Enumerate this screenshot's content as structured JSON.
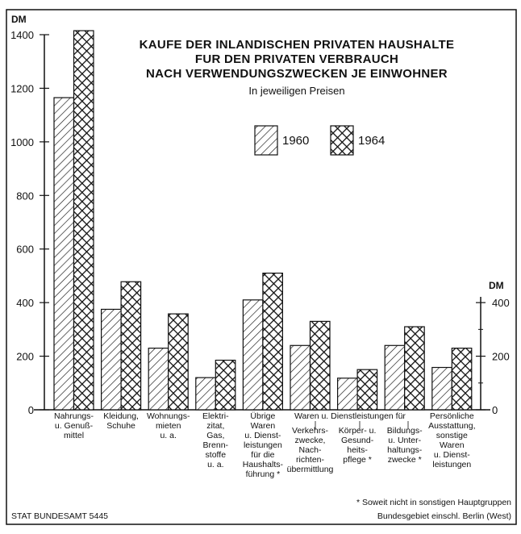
{
  "chart_data": {
    "type": "bar",
    "title": "KAUFE DER INLANDISCHEN PRIVATEN HAUSHALTE FUR DEN PRIVATEN VERBRAUCH NACH VERWENDUNGSZWECKEN JE EINWOHNER",
    "title_lines": [
      "KAUFE DER INLANDISCHEN PRIVATEN HAUSHALTE",
      "FUR DEN PRIVATEN VERBRAUCH",
      "NACH VERWENDUNGSZWECKEN JE EINWOHNER"
    ],
    "subtitle": "In jeweiligen Preisen",
    "ylabel_left": "DM",
    "ylabel_right": "DM",
    "ylim": [
      0,
      1400
    ],
    "left_ticks": [
      0,
      200,
      400,
      600,
      800,
      1000,
      1200,
      1400
    ],
    "right_ticks": [
      0,
      200,
      400
    ],
    "grid": false,
    "legend_position": "top-right",
    "categories": [
      [
        "Nahrungs-",
        "u. Genuß-",
        "mittel"
      ],
      [
        "Kleidung,",
        "Schuhe"
      ],
      [
        "Wohnungs-",
        "mieten",
        "u. a."
      ],
      [
        "Elektri-",
        "zitat,",
        "Gas,",
        "Brenn-",
        "stoffe",
        "u. a."
      ],
      [
        "Übrige",
        "Waren",
        "u. Dienst-",
        "leistungen",
        "für die",
        "Haushalts-",
        "führung *"
      ],
      [
        "Verkehrs-",
        "zwecke,",
        "Nach-",
        "richten-",
        "übermittlung"
      ],
      [
        "Körper- u.",
        "Gesund-",
        "heits-",
        "pflege *"
      ],
      [
        "Bildungs-",
        "u. Unter-",
        "haltungs-",
        "zwecke *"
      ],
      [
        "Persönliche",
        "Ausstattung,",
        "sonstige",
        "Waren",
        "u. Dienst-",
        "leistungen"
      ]
    ],
    "group_header": "Waren u. Dienstleistungen für",
    "series": [
      {
        "name": "1960",
        "values": [
          1165,
          375,
          230,
          120,
          410,
          240,
          118,
          240,
          158
        ]
      },
      {
        "name": "1964",
        "values": [
          1415,
          478,
          358,
          185,
          510,
          330,
          150,
          310,
          230
        ]
      }
    ],
    "footnote_lines": [
      "* Soweit nicht in sonstigen Hauptgruppen",
      "Bundesgebiet einschl. Berlin (West)"
    ],
    "source": "STAT BUNDESAMT 5445"
  },
  "colors": {
    "ink": "#111111",
    "bar_fill": "#ffffff"
  }
}
